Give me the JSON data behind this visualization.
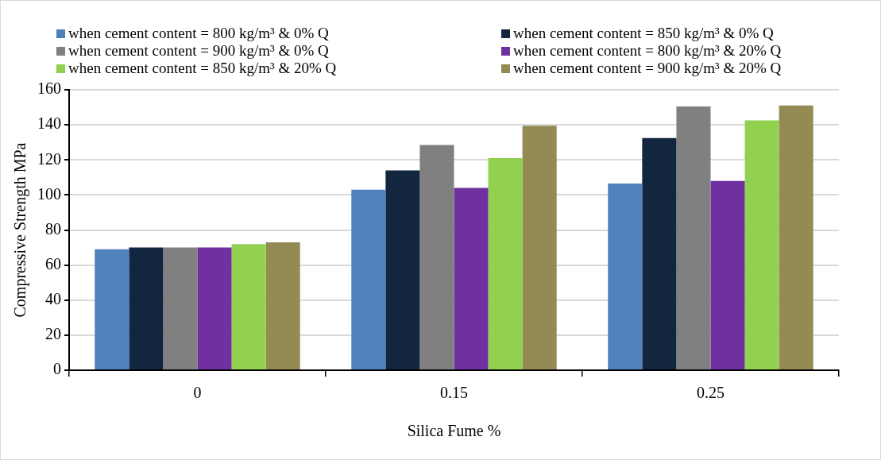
{
  "chart_data": {
    "type": "bar",
    "xlabel": "Silica Fume %",
    "ylabel": "Compressive Strength MPa",
    "categories": [
      "0",
      "0.15",
      "0.25"
    ],
    "series": [
      {
        "name": "when cement content = 800 kg/m³ & 0% Q",
        "color": "#4f81bd",
        "values": [
          69,
          103,
          106.5
        ]
      },
      {
        "name": "when cement content = 850 kg/m³ & 0% Q",
        "color": "#12263f",
        "values": [
          70,
          114,
          132.5
        ]
      },
      {
        "name": "when cement content = 900 kg/m³ & 0% Q",
        "color": "#808080",
        "values": [
          70,
          128.5,
          150.5
        ]
      },
      {
        "name": "when cement content = 800 kg/m³ & 20% Q",
        "color": "#7030a0",
        "values": [
          70,
          104,
          108
        ]
      },
      {
        "name": "when cement content = 850 kg/m³ & 20% Q",
        "color": "#92d050",
        "values": [
          72,
          121,
          142.5
        ]
      },
      {
        "name": "when cement content = 900 kg/m³ & 20% Q",
        "color": "#948a54",
        "values": [
          73,
          139.5,
          151
        ]
      }
    ],
    "ylim": [
      0,
      160
    ],
    "yticks": [
      0,
      20,
      40,
      60,
      80,
      100,
      120,
      140,
      160
    ],
    "grid": "y",
    "legend": "top"
  }
}
